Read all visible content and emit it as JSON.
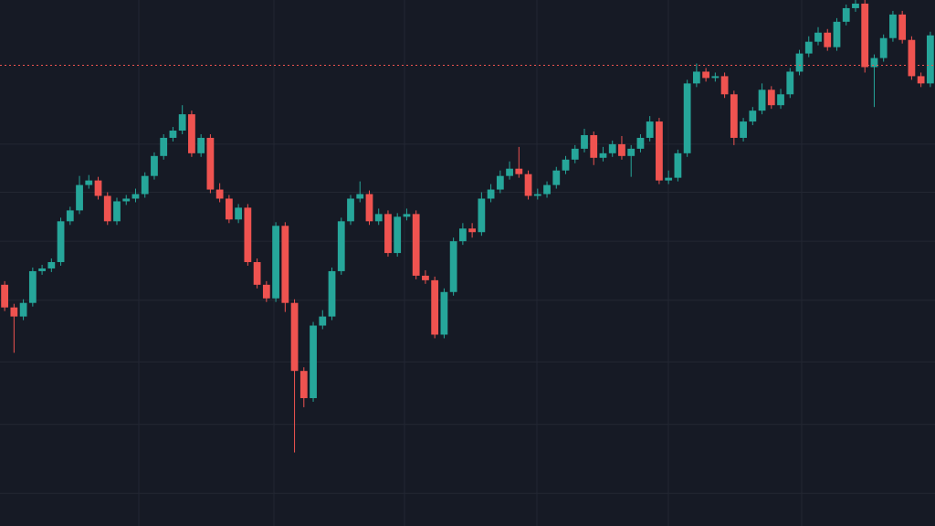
{
  "chart_data": {
    "type": "candlestick",
    "up_color": "#26a69a",
    "down_color": "#ef5350",
    "background": "#161a25",
    "grid_color": "#232733",
    "ylim": [
      0,
      580
    ],
    "grid": true,
    "ygrid": [
      36,
      112,
      181,
      249,
      314,
      368,
      421
    ],
    "xgrid": [
      14.34,
      28.8,
      42.76,
      56.92,
      70.98,
      85.24
    ],
    "price_line": {
      "value": 508,
      "color": "#ef5350",
      "style": "dashed"
    },
    "open": [
      266,
      241,
      231,
      246,
      281,
      284,
      291,
      336,
      348,
      376,
      381,
      364,
      336,
      358,
      361,
      366,
      386,
      408,
      428,
      436,
      454,
      411,
      428,
      371,
      361,
      338,
      351,
      291,
      266,
      251,
      331,
      246,
      171,
      141,
      221,
      231,
      281,
      336,
      361,
      366,
      336,
      344,
      301,
      341,
      344,
      276,
      271,
      211,
      258,
      314,
      328,
      324,
      361,
      371,
      386,
      394,
      388,
      364,
      366,
      376,
      392,
      404,
      416,
      431,
      406,
      411,
      421,
      408,
      416,
      428,
      446,
      381,
      384,
      411,
      488,
      501,
      494,
      496,
      476,
      428,
      446,
      458,
      481,
      464,
      476,
      501,
      521,
      534,
      544,
      528,
      556,
      571,
      576,
      506,
      516,
      538,
      564,
      536,
      496,
      488
    ],
    "high": [
      270,
      245,
      250,
      285,
      288,
      295,
      340,
      352,
      386,
      387,
      385,
      368,
      362,
      365,
      372,
      390,
      412,
      432,
      440,
      464,
      458,
      432,
      432,
      378,
      365,
      355,
      355,
      295,
      270,
      335,
      335,
      250,
      175,
      225,
      238,
      285,
      340,
      365,
      380,
      370,
      350,
      348,
      345,
      350,
      348,
      282,
      275,
      262,
      318,
      334,
      334,
      368,
      377,
      392,
      402,
      418,
      392,
      372,
      380,
      396,
      408,
      420,
      438,
      435,
      418,
      425,
      430,
      420,
      432,
      452,
      450,
      392,
      415,
      492,
      510,
      505,
      500,
      500,
      480,
      450,
      462,
      488,
      485,
      482,
      505,
      525,
      540,
      550,
      548,
      560,
      575,
      580,
      580,
      520,
      542,
      568,
      568,
      540,
      500,
      545
    ],
    "low": [
      237,
      191,
      227,
      242,
      277,
      280,
      287,
      332,
      344,
      372,
      360,
      332,
      332,
      354,
      357,
      362,
      382,
      404,
      424,
      432,
      407,
      407,
      367,
      357,
      334,
      334,
      287,
      262,
      247,
      247,
      236,
      81,
      131,
      137,
      217,
      227,
      277,
      332,
      357,
      332,
      332,
      297,
      297,
      337,
      272,
      267,
      207,
      207,
      254,
      310,
      318,
      320,
      357,
      367,
      382,
      384,
      360,
      360,
      362,
      372,
      388,
      400,
      412,
      398,
      402,
      407,
      404,
      385,
      412,
      424,
      377,
      377,
      380,
      407,
      484,
      490,
      490,
      472,
      420,
      424,
      442,
      454,
      460,
      460,
      472,
      497,
      517,
      530,
      524,
      524,
      552,
      567,
      500,
      462,
      512,
      534,
      532,
      492,
      484,
      484
    ],
    "close": [
      241,
      231,
      246,
      281,
      284,
      291,
      336,
      348,
      376,
      381,
      364,
      336,
      358,
      361,
      366,
      386,
      408,
      428,
      436,
      454,
      411,
      428,
      371,
      361,
      338,
      351,
      291,
      266,
      251,
      331,
      246,
      171,
      141,
      221,
      231,
      281,
      336,
      361,
      366,
      336,
      344,
      301,
      341,
      344,
      276,
      271,
      211,
      258,
      314,
      328,
      324,
      361,
      371,
      386,
      394,
      388,
      364,
      366,
      376,
      392,
      404,
      416,
      431,
      406,
      411,
      421,
      408,
      416,
      428,
      446,
      381,
      384,
      411,
      488,
      501,
      494,
      496,
      476,
      428,
      446,
      458,
      481,
      464,
      476,
      501,
      521,
      534,
      544,
      528,
      556,
      571,
      576,
      506,
      516,
      538,
      564,
      536,
      496,
      488,
      541
    ]
  }
}
